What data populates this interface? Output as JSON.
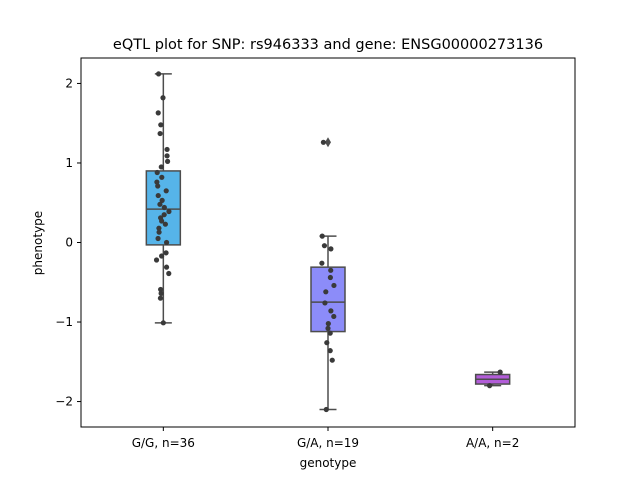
{
  "chart_data": {
    "type": "box",
    "title": "eQTL plot for SNP: rs946333 and gene: ENSG00000273136",
    "xlabel": "genotype",
    "ylabel": "phenotype",
    "ylim": [
      -2.32,
      2.32
    ],
    "yticks": [
      -2,
      -1,
      0,
      1,
      2
    ],
    "ytick_labels": [
      "−2",
      "−1",
      "0",
      "1",
      "2"
    ],
    "grid": false,
    "categories": [
      "G/G, n=36",
      "G/A, n=19",
      "A/A, n=2"
    ],
    "boxes": [
      {
        "name": "G/G, n=36",
        "color": "#56b4e9",
        "q1": -0.03,
        "median": 0.42,
        "q3": 0.9,
        "whisker_low": -1.01,
        "whisker_high": 2.12,
        "outliers": [],
        "points": [
          {
            "dx": -0.28,
            "y": 2.12
          },
          {
            "dx": -0.02,
            "y": 1.82
          },
          {
            "dx": -0.3,
            "y": 1.63
          },
          {
            "dx": -0.15,
            "y": 1.48
          },
          {
            "dx": -0.19,
            "y": 1.37
          },
          {
            "dx": 0.22,
            "y": 1.17
          },
          {
            "dx": 0.22,
            "y": 1.09
          },
          {
            "dx": 0.25,
            "y": 1.02
          },
          {
            "dx": -0.12,
            "y": 0.95
          },
          {
            "dx": -0.36,
            "y": 0.88
          },
          {
            "dx": -0.09,
            "y": 0.82
          },
          {
            "dx": -0.38,
            "y": 0.76
          },
          {
            "dx": -0.33,
            "y": 0.71
          },
          {
            "dx": 0.17,
            "y": 0.65
          },
          {
            "dx": -0.3,
            "y": 0.59
          },
          {
            "dx": -0.07,
            "y": 0.53
          },
          {
            "dx": -0.2,
            "y": 0.48
          },
          {
            "dx": 0.06,
            "y": 0.44
          },
          {
            "dx": 0.33,
            "y": 0.39
          },
          {
            "dx": 0.05,
            "y": 0.35
          },
          {
            "dx": -0.16,
            "y": 0.31
          },
          {
            "dx": -0.1,
            "y": 0.27
          },
          {
            "dx": 0.12,
            "y": 0.23
          },
          {
            "dx": -0.26,
            "y": 0.18
          },
          {
            "dx": -0.25,
            "y": 0.13
          },
          {
            "dx": -0.31,
            "y": 0.05
          },
          {
            "dx": 0.19,
            "y": 0.0
          },
          {
            "dx": 0.16,
            "y": -0.13
          },
          {
            "dx": -0.1,
            "y": -0.17
          },
          {
            "dx": -0.4,
            "y": -0.22
          },
          {
            "dx": 0.19,
            "y": -0.31
          },
          {
            "dx": 0.32,
            "y": -0.39
          },
          {
            "dx": -0.16,
            "y": -0.59
          },
          {
            "dx": -0.13,
            "y": -0.64
          },
          {
            "dx": -0.17,
            "y": -0.7
          },
          {
            "dx": 0.0,
            "y": -1.01
          }
        ]
      },
      {
        "name": "G/A, n=19",
        "color": "#8c8cf9",
        "q1": -1.12,
        "median": -0.75,
        "q3": -0.31,
        "whisker_low": -2.1,
        "whisker_high": 0.08,
        "outliers": [
          1.26
        ],
        "points": [
          {
            "dx": -0.27,
            "y": 1.26
          },
          {
            "dx": -0.34,
            "y": 0.08
          },
          {
            "dx": -0.21,
            "y": -0.04
          },
          {
            "dx": 0.17,
            "y": -0.08
          },
          {
            "dx": -0.36,
            "y": -0.26
          },
          {
            "dx": 0.16,
            "y": -0.35
          },
          {
            "dx": 0.14,
            "y": -0.44
          },
          {
            "dx": 0.35,
            "y": -0.54
          },
          {
            "dx": -0.13,
            "y": -0.62
          },
          {
            "dx": -0.18,
            "y": -0.76
          },
          {
            "dx": 0.17,
            "y": -0.86
          },
          {
            "dx": 0.34,
            "y": -0.93
          },
          {
            "dx": 0.02,
            "y": -1.02
          },
          {
            "dx": 0.0,
            "y": -1.08
          },
          {
            "dx": 0.13,
            "y": -1.14
          },
          {
            "dx": -0.07,
            "y": -1.26
          },
          {
            "dx": 0.13,
            "y": -1.36
          },
          {
            "dx": 0.25,
            "y": -1.48
          },
          {
            "dx": -0.1,
            "y": -2.1
          }
        ]
      },
      {
        "name": "A/A, n=2",
        "color": "#b25dd8",
        "q1": -1.78,
        "median": -1.72,
        "q3": -1.66,
        "whisker_low": -1.8,
        "whisker_high": -1.63,
        "outliers": [],
        "points": [
          {
            "dx": 0.44,
            "y": -1.63
          },
          {
            "dx": -0.18,
            "y": -1.8
          }
        ]
      }
    ]
  }
}
